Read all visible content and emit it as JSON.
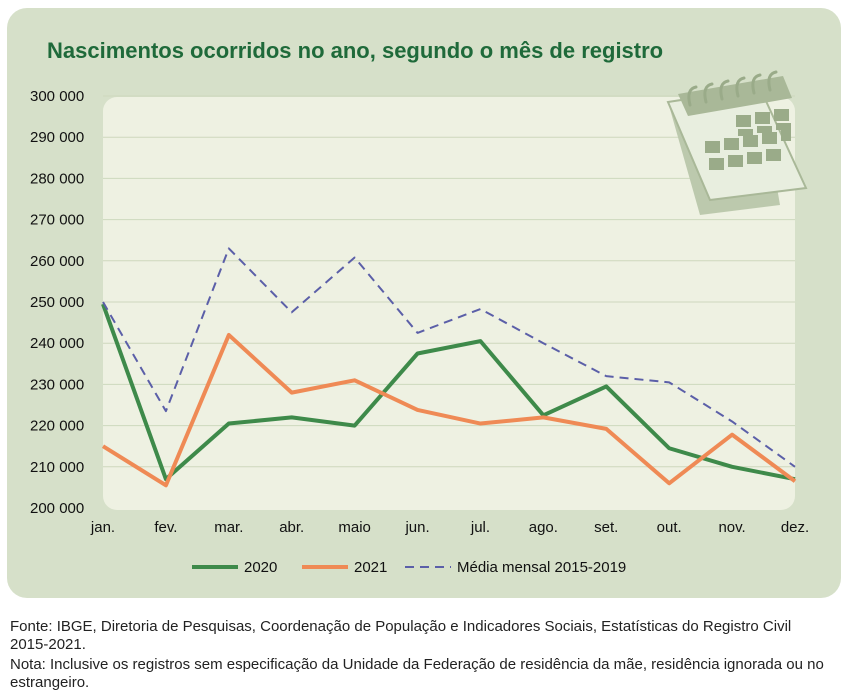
{
  "chart_data": {
    "type": "line",
    "title": "Nascimentos ocorridos no ano, segundo o mês de registro",
    "categories": [
      "jan.",
      "fev.",
      "mar.",
      "abr.",
      "maio",
      "jun.",
      "jul.",
      "ago.",
      "set.",
      "out.",
      "nov.",
      "dez."
    ],
    "ylim": [
      200000,
      300000
    ],
    "yticks": [
      200000,
      210000,
      220000,
      230000,
      240000,
      250000,
      260000,
      270000,
      280000,
      290000,
      300000
    ],
    "ytick_labels": [
      "200 000",
      "210 000",
      "220 000",
      "230 000",
      "240 000",
      "250 000",
      "260 000",
      "270 000",
      "280 000",
      "290 000",
      "300 000"
    ],
    "grid": true,
    "legend_position": "bottom",
    "series": [
      {
        "name": "2020",
        "style": "solid",
        "color": "#3e8a4a",
        "values": [
          249500,
          207000,
          220500,
          222000,
          220000,
          237500,
          240500,
          222500,
          229500,
          214500,
          210000,
          207000
        ]
      },
      {
        "name": "2021",
        "style": "solid",
        "color": "#ef8a55",
        "values": [
          215000,
          205500,
          242000,
          228000,
          231000,
          223800,
          220500,
          222000,
          219200,
          206000,
          217800,
          206500
        ]
      },
      {
        "name": "Média mensal 2015-2019",
        "style": "dashed",
        "color": "#5b5fa8",
        "values": [
          250000,
          223500,
          263000,
          247500,
          260800,
          242500,
          248300,
          240000,
          232000,
          230500,
          221000,
          210000
        ]
      }
    ]
  },
  "decoration": {
    "icon": "calendar-icon"
  },
  "footnotes": {
    "source": "Fonte: IBGE, Diretoria de Pesquisas, Coordenação de População e Indicadores Sociais, Estatísticas do Registro Civil 2015-2021.",
    "note": "Nota: Inclusive os registros sem especificação da Unidade da Federação de residência da mãe, residência ignorada ou no estrangeiro."
  }
}
